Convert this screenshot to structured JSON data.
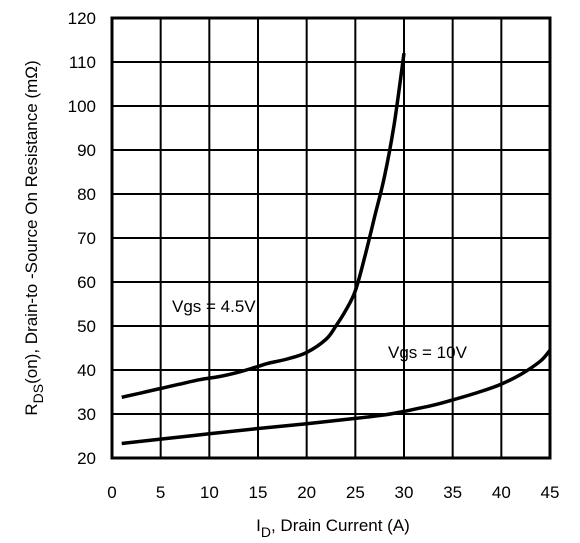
{
  "chart_data": {
    "type": "line",
    "title": "",
    "xlabel": {
      "main": "I",
      "sub": "D",
      "rest": ", Drain Current (A)"
    },
    "ylabel": {
      "main": "R",
      "sub": "DS",
      "rest": "(on),  Drain-to -Source On Resistance (mΩ)"
    },
    "xlim": [
      0,
      45
    ],
    "ylim": [
      20,
      120
    ],
    "xticks": [
      "0",
      "5",
      "10",
      "15",
      "20",
      "25",
      "30",
      "35",
      "40",
      "45"
    ],
    "yticks": [
      "20",
      "30",
      "40",
      "50",
      "60",
      "70",
      "80",
      "90",
      "100",
      "110",
      "120"
    ],
    "grid": true,
    "series": [
      {
        "name": "Vgs = 4.5V",
        "x": [
          1,
          3,
          5,
          7,
          9,
          11,
          13,
          15,
          16,
          18,
          20,
          22,
          23,
          24,
          25,
          26,
          27,
          28,
          29,
          30
        ],
        "y": [
          33.8,
          34.8,
          35.8,
          36.8,
          37.8,
          38.5,
          39.5,
          40.8,
          41.5,
          42.5,
          44.0,
          47.0,
          50.0,
          53.5,
          58.0,
          66.0,
          75.0,
          84.0,
          96.0,
          112.0
        ]
      },
      {
        "name": "Vgs = 10V",
        "x": [
          1,
          5,
          10,
          15,
          20,
          25,
          28,
          30,
          33,
          35,
          38,
          40,
          42,
          44,
          45
        ],
        "y": [
          23.3,
          24.3,
          25.5,
          26.7,
          27.8,
          29.0,
          29.8,
          30.6,
          32.0,
          33.2,
          35.2,
          36.8,
          39.0,
          42.0,
          44.5
        ]
      }
    ],
    "annotations": [
      "Vgs = 4.5V",
      "Vgs = 10V"
    ]
  }
}
